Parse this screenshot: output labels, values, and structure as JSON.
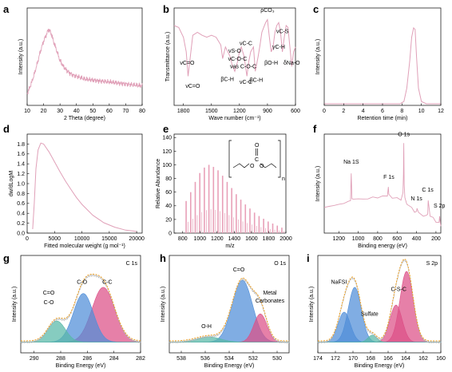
{
  "chart_data": [
    {
      "panel": "a",
      "type": "line",
      "xlabel": "2 Theta (degree)",
      "ylabel": "Intensity (a.u.)",
      "xlim": [
        10,
        80
      ],
      "xticks": [
        10,
        20,
        30,
        40,
        50,
        60,
        70,
        80
      ],
      "ylim": [
        0,
        1
      ],
      "color": "#e0a0b8",
      "x": [
        10,
        12,
        14,
        16,
        18,
        20,
        22,
        23,
        24,
        25,
        26,
        28,
        30,
        32,
        34,
        36,
        38,
        40,
        45,
        50,
        55,
        60,
        65,
        70,
        75,
        80
      ],
      "y": [
        0.12,
        0.2,
        0.3,
        0.42,
        0.55,
        0.66,
        0.74,
        0.78,
        0.76,
        0.72,
        0.66,
        0.56,
        0.46,
        0.4,
        0.36,
        0.33,
        0.31,
        0.3,
        0.27,
        0.26,
        0.25,
        0.24,
        0.23,
        0.22,
        0.21,
        0.2
      ]
    },
    {
      "panel": "b",
      "type": "line",
      "xlabel": "Wave number (cm⁻¹)",
      "ylabel": "Transmittance (a.u.)",
      "xlim": [
        1900,
        600
      ],
      "xticks": [
        1800,
        1500,
        1200,
        900,
        600
      ],
      "ylim": [
        0,
        1
      ],
      "color": "#e0a0b8",
      "x": [
        1900,
        1850,
        1800,
        1770,
        1750,
        1720,
        1700,
        1650,
        1600,
        1550,
        1500,
        1450,
        1400,
        1380,
        1350,
        1300,
        1280,
        1250,
        1220,
        1200,
        1180,
        1150,
        1120,
        1100,
        1080,
        1050,
        1030,
        1000,
        980,
        960,
        940,
        920,
        900,
        880,
        860,
        840,
        820,
        800,
        780,
        760,
        740,
        720,
        700,
        680,
        660,
        640,
        620,
        600
      ],
      "y": [
        0.82,
        0.8,
        0.7,
        0.55,
        0.3,
        0.55,
        0.72,
        0.75,
        0.72,
        0.7,
        0.72,
        0.7,
        0.62,
        0.48,
        0.6,
        0.5,
        0.42,
        0.35,
        0.45,
        0.55,
        0.6,
        0.5,
        0.3,
        0.45,
        0.55,
        0.6,
        0.35,
        0.5,
        0.62,
        0.75,
        0.8,
        0.85,
        0.88,
        0.7,
        0.55,
        0.6,
        0.75,
        0.82,
        0.85,
        0.75,
        0.55,
        0.7,
        0.82,
        0.8,
        0.6,
        0.4,
        0.55,
        0.6
      ],
      "annotations": [
        "νC=O",
        "νC=O",
        "βC-H",
        "νS-O",
        "νC-O-C",
        "νC-C",
        "νas C-O-C",
        "νC-C",
        "βC-H",
        "ρCO₃",
        "βO-H",
        "γC-H",
        "νC-S",
        "δNa-O"
      ]
    },
    {
      "panel": "c",
      "type": "line",
      "xlabel": "Retention time (min)",
      "ylabel": "Intensity (a.u.)",
      "xlim": [
        0,
        12
      ],
      "xticks": [
        0,
        2,
        4,
        6,
        8,
        10,
        12
      ],
      "ylim": [
        0,
        1
      ],
      "color": "#e0a0b8",
      "x": [
        0,
        7.8,
        8.2,
        8.5,
        8.8,
        9.0,
        9.2,
        9.35,
        9.5,
        9.7,
        10.0,
        10.5,
        12
      ],
      "y": [
        0,
        0,
        0.03,
        0.2,
        0.55,
        0.85,
        0.97,
        0.95,
        0.6,
        0.2,
        0.03,
        0,
        0
      ]
    },
    {
      "panel": "d",
      "type": "line",
      "xlabel": "Fitted molecular weight (g mol⁻¹)",
      "ylabel": "dw/dLogM",
      "xlim": [
        0,
        21000
      ],
      "xticks": [
        0,
        5000,
        10000,
        15000,
        20000
      ],
      "ylim": [
        0,
        2.0
      ],
      "yticks": [
        0.0,
        0.2,
        0.4,
        0.6,
        0.8,
        1.0,
        1.2,
        1.4,
        1.6,
        1.8
      ],
      "color": "#e0a0b8",
      "x": [
        1000,
        1300,
        1600,
        2000,
        2500,
        3000,
        3500,
        4000,
        5000,
        6000,
        7000,
        8000,
        9000,
        10000,
        12000,
        14000,
        16000,
        18000,
        19500,
        20000
      ],
      "y": [
        0.08,
        0.6,
        1.3,
        1.68,
        1.82,
        1.8,
        1.72,
        1.64,
        1.44,
        1.24,
        1.05,
        0.88,
        0.72,
        0.58,
        0.36,
        0.21,
        0.12,
        0.06,
        0.04,
        0.03
      ]
    },
    {
      "panel": "e",
      "type": "bar",
      "xlabel": "m/z",
      "ylabel": "Relative Abundance",
      "xlim": [
        700,
        2000
      ],
      "xticks": [
        800,
        1000,
        1200,
        1400,
        1600,
        1800,
        2000
      ],
      "ylim": [
        0,
        145
      ],
      "yticks": [
        0,
        20,
        40,
        60,
        80,
        100,
        120,
        140
      ],
      "color": "#e8a0b8",
      "x": [
        840,
        893,
        946,
        999,
        1052,
        1105,
        1158,
        1211,
        1264,
        1317,
        1370,
        1423,
        1476,
        1529,
        1582,
        1635,
        1688,
        1741,
        1794,
        1847,
        1900,
        1953
      ],
      "values": [
        47,
        60,
        75,
        88,
        96,
        100,
        97,
        92,
        84,
        75,
        66,
        57,
        49,
        42,
        36,
        30,
        25,
        21,
        17,
        14,
        11,
        8
      ]
    },
    {
      "panel": "f",
      "type": "line",
      "xlabel": "Binding energy (eV)",
      "ylabel": "Intensity (a.u.)",
      "xlim": [
        1350,
        150
      ],
      "xticks": [
        1200,
        1000,
        800,
        600,
        400,
        200
      ],
      "ylim": [
        0,
        1
      ],
      "color": "#e0a0b8",
      "x": [
        1350,
        1300,
        1250,
        1200,
        1150,
        1100,
        1080,
        1072,
        1065,
        1050,
        1000,
        950,
        900,
        850,
        800,
        750,
        700,
        690,
        685,
        680,
        650,
        600,
        560,
        540,
        535,
        531,
        527,
        520,
        500,
        450,
        420,
        400,
        395,
        380,
        330,
        300,
        285,
        280,
        260,
        230,
        200,
        168,
        162,
        155,
        150
      ],
      "y": [
        0.26,
        0.27,
        0.28,
        0.29,
        0.3,
        0.32,
        0.33,
        0.6,
        0.35,
        0.34,
        0.35,
        0.34,
        0.35,
        0.36,
        0.36,
        0.37,
        0.38,
        0.46,
        0.4,
        0.38,
        0.36,
        0.35,
        0.34,
        0.4,
        0.6,
        0.9,
        0.5,
        0.35,
        0.3,
        0.25,
        0.22,
        0.21,
        0.26,
        0.2,
        0.18,
        0.17,
        0.2,
        0.32,
        0.18,
        0.15,
        0.12,
        0.1,
        0.18,
        0.09,
        0.08
      ],
      "annotations": [
        "Na 1S",
        "F 1s",
        "O 1s",
        "C 1s",
        "N 1s",
        "S 2p"
      ]
    },
    {
      "panel": "g",
      "title": "C 1s",
      "type": "area",
      "xlabel": "Binding Energy (eV)",
      "ylabel": "Intensity (a.u.)",
      "xlim": [
        291,
        282
      ],
      "xticks": [
        290,
        288,
        286,
        284,
        282
      ],
      "series": [
        {
          "name": "C-C",
          "center": 284.8,
          "height": 0.62,
          "width": 0.85,
          "color": "#dc4f86"
        },
        {
          "name": "C-O",
          "center": 286.3,
          "height": 0.55,
          "width": 0.75,
          "color": "#4f8ed8"
        },
        {
          "name": "C=O / C-O",
          "center": 288.3,
          "height": 0.24,
          "width": 0.65,
          "color": "#58b8a8"
        }
      ],
      "labels": [
        "C=O",
        "C-O",
        "C-O",
        "C-C"
      ]
    },
    {
      "panel": "h",
      "title": "O 1s",
      "type": "area",
      "xlabel": "Binding Energy (eV)",
      "ylabel": "Intensity (a.u.)",
      "xlim": [
        539,
        529
      ],
      "xticks": [
        538,
        536,
        534,
        532,
        530
      ],
      "series": [
        {
          "name": "C=O",
          "center": 532.9,
          "height": 0.7,
          "width": 0.85,
          "color": "#4f8ed8"
        },
        {
          "name": "Metal Carbonates",
          "center": 531.4,
          "height": 0.32,
          "width": 0.55,
          "color": "#dc4f86"
        },
        {
          "name": "O-H",
          "center": 535.7,
          "height": 0.06,
          "width": 1.0,
          "color": "#58b8a8"
        }
      ],
      "labels": [
        "C=O",
        "Metal",
        "Carbonates",
        "O-H"
      ]
    },
    {
      "panel": "i",
      "title": "S 2p",
      "type": "area",
      "xlabel": "Binding Energy (eV)",
      "ylabel": "Intensity (a.u.)",
      "xlim": [
        174,
        160
      ],
      "xticks": [
        174,
        172,
        170,
        168,
        166,
        164,
        162,
        160
      ],
      "series": [
        {
          "name": "C-S-C (2p3/2)",
          "center": 163.9,
          "height": 0.8,
          "width": 0.75,
          "color": "#dc4f86"
        },
        {
          "name": "C-S-C (2p1/2)",
          "center": 165.1,
          "height": 0.42,
          "width": 0.7,
          "color": "#dc4f86"
        },
        {
          "name": "NaFSI (2p3/2)",
          "center": 169.8,
          "height": 0.62,
          "width": 0.75,
          "color": "#4f8ed8"
        },
        {
          "name": "NaFSI (2p1/2)",
          "center": 171.0,
          "height": 0.34,
          "width": 0.7,
          "color": "#4f8ed8"
        },
        {
          "name": "Sulfate",
          "center": 167.8,
          "height": 0.08,
          "width": 0.5,
          "color": "#58b8a8"
        }
      ],
      "labels": [
        "NaFSI",
        "Sulfate",
        "C-S-C"
      ]
    }
  ],
  "texts": {
    "e_n": "n"
  }
}
